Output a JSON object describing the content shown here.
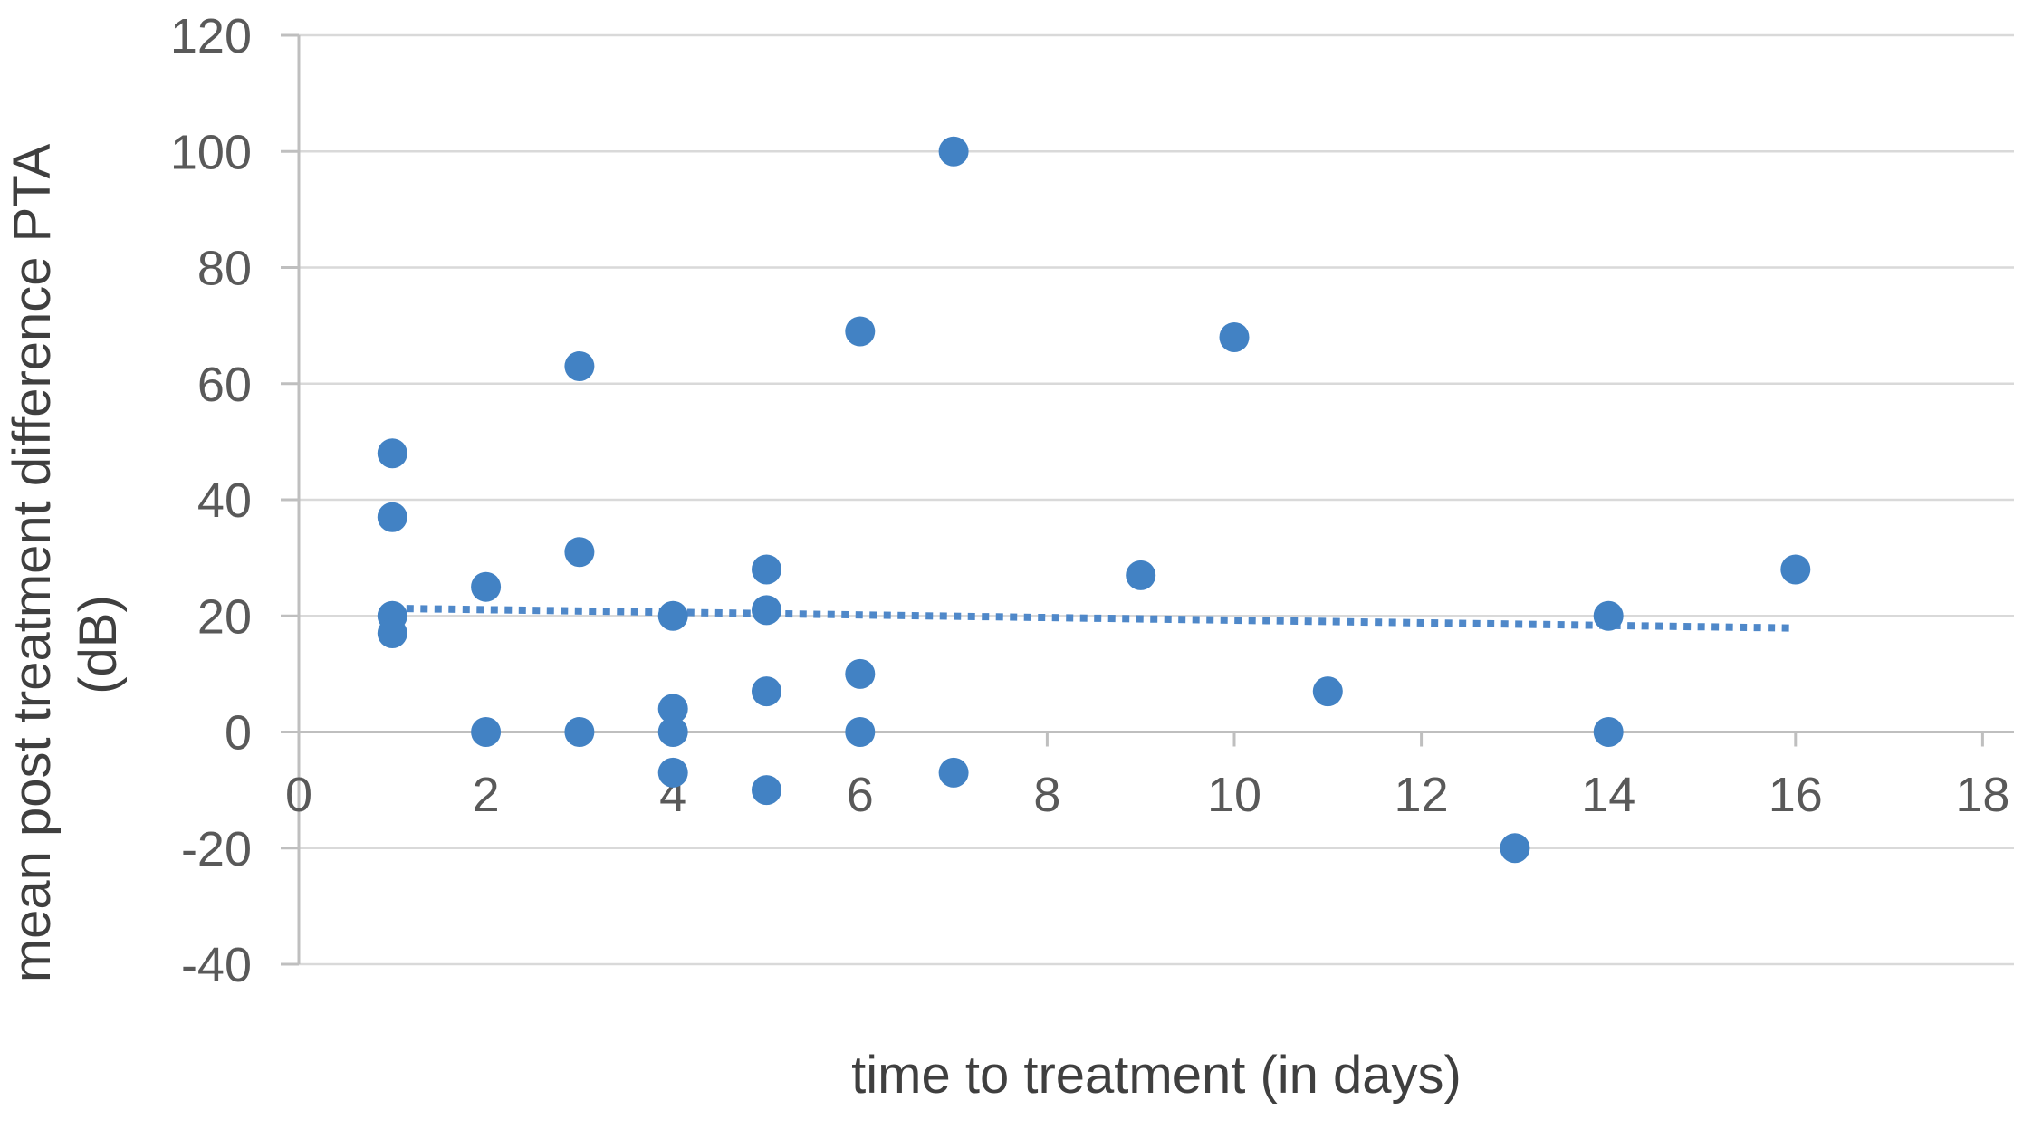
{
  "chart_data": {
    "type": "scatter",
    "title": "",
    "xlabel": "time to treatment (in days)",
    "ylabel_line1": "mean post treatment difference PTA",
    "ylabel_line2": "(dB)",
    "xlim": [
      0,
      18
    ],
    "ylim": [
      -40,
      120
    ],
    "xticks": [
      0,
      2,
      4,
      6,
      8,
      10,
      12,
      14,
      16,
      18
    ],
    "yticks": [
      120,
      100,
      80,
      60,
      40,
      20,
      0,
      -20,
      -40
    ],
    "grid": true,
    "legend_position": "none",
    "points": [
      {
        "x": 1,
        "y": 48
      },
      {
        "x": 1,
        "y": 37
      },
      {
        "x": 1,
        "y": 20
      },
      {
        "x": 1,
        "y": 17
      },
      {
        "x": 2,
        "y": 25
      },
      {
        "x": 2,
        "y": 0
      },
      {
        "x": 3,
        "y": 63
      },
      {
        "x": 3,
        "y": 31
      },
      {
        "x": 3,
        "y": 0
      },
      {
        "x": 4,
        "y": 20
      },
      {
        "x": 4,
        "y": 4
      },
      {
        "x": 4,
        "y": 0
      },
      {
        "x": 4,
        "y": -7
      },
      {
        "x": 5,
        "y": 28
      },
      {
        "x": 5,
        "y": 21
      },
      {
        "x": 5,
        "y": 7
      },
      {
        "x": 5,
        "y": -10
      },
      {
        "x": 6,
        "y": 69
      },
      {
        "x": 6,
        "y": 10
      },
      {
        "x": 6,
        "y": 0
      },
      {
        "x": 7,
        "y": 100
      },
      {
        "x": 7,
        "y": -7
      },
      {
        "x": 9,
        "y": 27
      },
      {
        "x": 10,
        "y": 68
      },
      {
        "x": 11,
        "y": 7
      },
      {
        "x": 13,
        "y": -20
      },
      {
        "x": 14,
        "y": 20
      },
      {
        "x": 14,
        "y": 0
      },
      {
        "x": 16,
        "y": 28
      }
    ],
    "trendline": {
      "style": "dotted",
      "x_start": 1,
      "y_start": 21.3,
      "x_end": 16,
      "y_end": 17.9
    },
    "colors": {
      "marker": "#4282c4",
      "trendline": "#4f88c9",
      "gridline": "#d9d9d9",
      "axis": "#bfbfbf",
      "tick_label": "#595959",
      "axis_title": "#3f3f3f",
      "background": "#ffffff"
    }
  }
}
